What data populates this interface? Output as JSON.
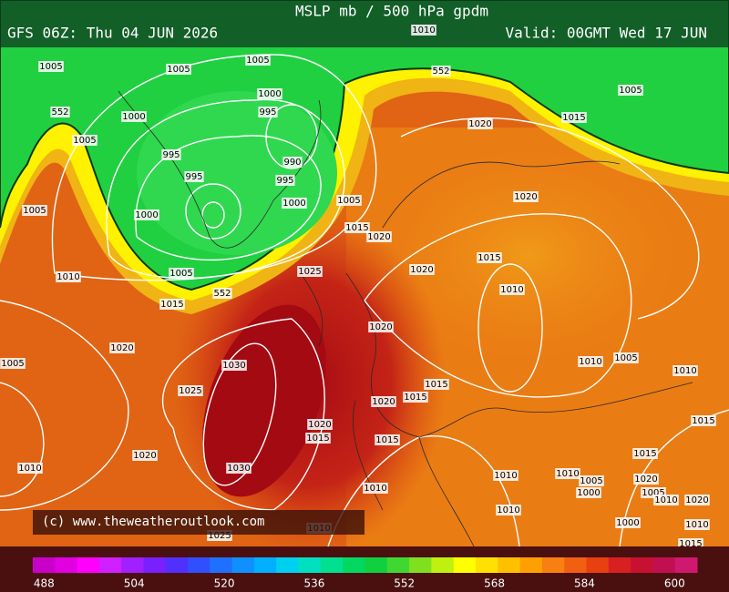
{
  "header": {
    "title": "MSLP mb / 500 hPa gpdm",
    "run": "GFS 06Z: Thu 04 JUN 2026",
    "valid": "Valid: 00GMT Wed 17 JUN"
  },
  "isobar_labels": [
    "1010",
    "552",
    "1005",
    "1005",
    "1005",
    "1005",
    "552",
    "1000",
    "1000",
    "995",
    "1015",
    "1020",
    "1005",
    "995",
    "990",
    "995",
    "995",
    "1020",
    "1005",
    "1000",
    "1000",
    "1005",
    "1015",
    "1020",
    "1010",
    "1005",
    "1025",
    "1020",
    "1015",
    "552",
    "1015",
    "1010",
    "1020",
    "1020",
    "1005",
    "1030",
    "1010",
    "1005",
    "1010",
    "1025",
    "1015",
    "1020",
    "1015",
    "1020",
    "1015",
    "1015",
    "1015",
    "1020",
    "1015",
    "1010",
    "1030",
    "1010",
    "1010",
    "1005",
    "1020",
    "1010",
    "1000",
    "1005",
    "1010",
    "1020",
    "1010",
    "1000",
    "1010",
    "1010",
    "1025",
    "1015",
    "1005"
  ],
  "credit": "(c) www.theweatheroutlook.com",
  "colorbar": {
    "lim": [
      486,
      604
    ],
    "ticks": [
      488,
      504,
      520,
      536,
      552,
      568,
      584,
      600
    ],
    "colors": [
      "#c800c8",
      "#e000e0",
      "#ff00ff",
      "#d020ff",
      "#a020ff",
      "#7a20ff",
      "#5030ff",
      "#3050ff",
      "#2070ff",
      "#1090ff",
      "#00b0ff",
      "#00d0f0",
      "#00e0c0",
      "#00e090",
      "#00d860",
      "#10d040",
      "#40d830",
      "#80e020",
      "#c0f010",
      "#ffff00",
      "#ffe000",
      "#ffc000",
      "#ffa000",
      "#f88010",
      "#f06010",
      "#e84010",
      "#d82020",
      "#c81030",
      "#c01050",
      "#d01870"
    ]
  }
}
